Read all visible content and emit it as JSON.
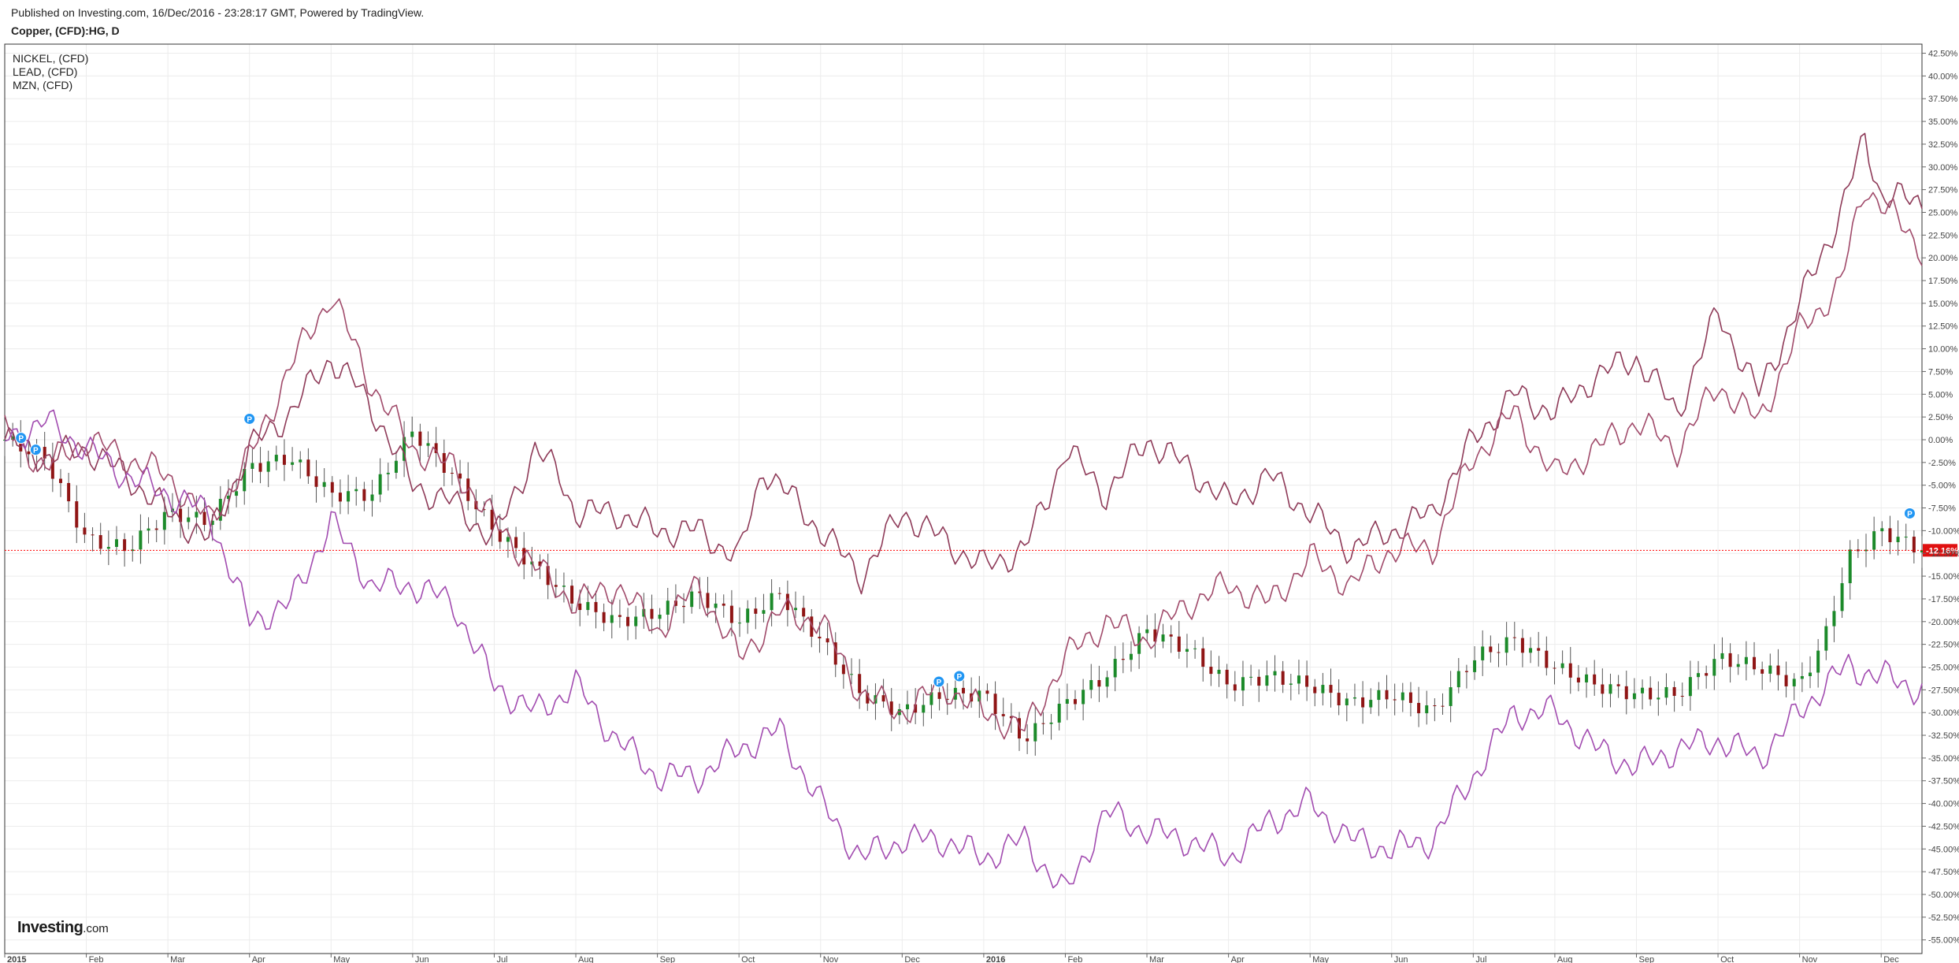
{
  "header": {
    "published": "Published on Investing.com, 16/Dec/2016 - 23:28:17 GMT, Powered by TradingView.",
    "symbol": "Copper, (CFD):HG, D"
  },
  "legend": [
    "NICKEL,  (CFD)",
    "LEAD,  (CFD)",
    "MZN,  (CFD)"
  ],
  "logo": {
    "text": "Investing",
    "suffix": ".com"
  },
  "colors": {
    "nickel": "#8e3a58",
    "lead": "#a04a6a",
    "mzn": "#a24cb0",
    "candle_up": "#1c8a2a",
    "candle_down": "#8f1515",
    "grid": "#ececec",
    "current_line": "#ff0000",
    "current_badge": "#e01010",
    "marker": "#2196f3"
  },
  "chart_data": {
    "type": "line",
    "y_unit": "percent change",
    "ylim": [
      -56.5,
      43.5
    ],
    "y_ticks": [
      "42.50%",
      "40.00%",
      "37.50%",
      "35.00%",
      "32.50%",
      "30.00%",
      "27.50%",
      "25.00%",
      "22.50%",
      "20.00%",
      "17.50%",
      "15.00%",
      "12.50%",
      "10.00%",
      "7.50%",
      "5.00%",
      "2.50%",
      "0.00%",
      "-2.50%",
      "-5.00%",
      "-7.50%",
      "-10.00%",
      "-12.50%",
      "-15.00%",
      "-17.50%",
      "-20.00%",
      "-22.50%",
      "-25.00%",
      "-27.50%",
      "-30.00%",
      "-32.50%",
      "-35.00%",
      "-37.50%",
      "-40.00%",
      "-42.50%",
      "-45.00%",
      "-47.50%",
      "-50.00%",
      "-52.50%",
      "-55.00%"
    ],
    "x_ticks": [
      {
        "label": "2015",
        "month": 0,
        "bold": true
      },
      {
        "label": "Feb",
        "month": 1
      },
      {
        "label": "Mar",
        "month": 2
      },
      {
        "label": "Apr",
        "month": 3
      },
      {
        "label": "May",
        "month": 4
      },
      {
        "label": "Jun",
        "month": 5
      },
      {
        "label": "Jul",
        "month": 6
      },
      {
        "label": "Aug",
        "month": 7
      },
      {
        "label": "Sep",
        "month": 8
      },
      {
        "label": "Oct",
        "month": 9
      },
      {
        "label": "Nov",
        "month": 10
      },
      {
        "label": "Dec",
        "month": 11
      },
      {
        "label": "2016",
        "month": 12,
        "bold": true
      },
      {
        "label": "Feb",
        "month": 13
      },
      {
        "label": "Mar",
        "month": 14
      },
      {
        "label": "Apr",
        "month": 15
      },
      {
        "label": "May",
        "month": 16
      },
      {
        "label": "Jun",
        "month": 17
      },
      {
        "label": "Jul",
        "month": 18
      },
      {
        "label": "Aug",
        "month": 19
      },
      {
        "label": "Sep",
        "month": 20
      },
      {
        "label": "Oct",
        "month": 21
      },
      {
        "label": "Nov",
        "month": 22
      },
      {
        "label": "Dec",
        "month": 23
      }
    ],
    "x_range_months": [
      0,
      23.5
    ],
    "current_value": -12.16,
    "current_label": "-12.16%",
    "copper_candles": {
      "label": "Copper, (CFD):HG, D",
      "t": [
        0,
        0.5,
        1,
        1.5,
        2,
        2.5,
        3,
        3.5,
        4,
        4.5,
        5,
        5.5,
        6,
        6.5,
        7,
        7.5,
        8,
        8.5,
        9,
        9.5,
        10,
        10.5,
        11,
        11.5,
        12,
        12.5,
        13,
        13.5,
        14,
        14.5,
        15,
        15.5,
        16,
        16.5,
        17,
        17.5,
        18,
        18.5,
        19,
        19.5,
        20,
        20.5,
        21,
        21.5,
        22,
        22.3,
        22.6,
        23,
        23.5
      ],
      "close": [
        0,
        -2,
        -11,
        -12,
        -8,
        -9,
        -3,
        -2,
        -6,
        -6,
        1,
        -4,
        -10,
        -14,
        -18,
        -20,
        -19,
        -17,
        -20,
        -17,
        -22,
        -28,
        -30,
        -28,
        -28,
        -33,
        -29,
        -26,
        -21,
        -23,
        -27,
        -26,
        -27,
        -29,
        -28,
        -30,
        -24,
        -22,
        -25,
        -27,
        -28,
        -28,
        -24,
        -25,
        -27,
        -22,
        -13,
        -10,
        -12.16
      ]
    },
    "series": [
      {
        "name": "NICKEL,  (CFD)",
        "t": [
          0,
          0.5,
          1,
          1.5,
          2,
          2.5,
          3,
          3.5,
          4,
          4.3,
          4.6,
          5,
          5.5,
          6,
          6.5,
          6.8,
          7,
          7.5,
          8,
          8.5,
          9,
          9.3,
          9.6,
          10,
          10.5,
          11,
          11.5,
          12,
          12.5,
          12.8,
          13,
          13.5,
          14,
          14.5,
          15,
          15.5,
          16,
          16.5,
          17,
          17.5,
          18,
          18.5,
          19,
          19.5,
          20,
          20.5,
          21,
          21.5,
          22,
          22.5,
          22.8,
          23,
          23.5
        ],
        "values": [
          0,
          -2,
          -1,
          -4,
          -8,
          -11,
          -1,
          3,
          9,
          6,
          2,
          -5,
          -7,
          -11,
          -1,
          -4,
          -8,
          -8,
          -10,
          -10,
          -13,
          -3,
          -6,
          -10,
          -15,
          -8,
          -11,
          -14,
          -12,
          -6,
          -1,
          -6,
          0,
          -3,
          -7,
          -4,
          -8,
          -12,
          -10,
          -8,
          0,
          5,
          3,
          7,
          9,
          3,
          14,
          5,
          15,
          25,
          33,
          27,
          26
        ]
      },
      {
        "name": "LEAD,  (CFD)",
        "t": [
          0,
          0.5,
          1,
          1.5,
          2,
          2.5,
          3,
          3.5,
          4,
          4.5,
          5,
          5.5,
          6,
          6.5,
          7,
          7.5,
          8,
          8.5,
          9,
          9.5,
          10,
          10.5,
          11,
          11.5,
          12,
          12.5,
          13,
          13.5,
          14,
          14.5,
          15,
          15.5,
          16,
          16.5,
          17,
          17.5,
          18,
          18.5,
          19,
          19.5,
          20,
          20.5,
          21,
          21.5,
          22,
          22.5,
          22.8,
          23,
          23.5
        ],
        "values": [
          1,
          -3,
          0,
          -2,
          -4,
          -9,
          -2,
          8,
          16,
          6,
          -1,
          -3,
          -9,
          -14,
          -18,
          -16,
          -21,
          -16,
          -24,
          -19,
          -20,
          -28,
          -30,
          -27,
          -30,
          -32,
          -24,
          -20,
          -22,
          -18,
          -16,
          -18,
          -13,
          -16,
          -12,
          -12,
          -2,
          3,
          -4,
          -1,
          2,
          -1,
          6,
          2,
          12,
          17,
          28,
          26,
          21
        ]
      },
      {
        "name": "MZN,  (CFD)",
        "t": [
          0,
          0.5,
          1,
          1.5,
          2,
          2.5,
          3,
          3.5,
          4,
          4.5,
          5,
          5.5,
          6,
          6.5,
          7,
          7.5,
          8,
          8.5,
          9,
          9.5,
          10,
          10.5,
          11,
          11.5,
          12,
          12.5,
          13,
          13.5,
          14,
          14.5,
          15,
          15.5,
          16,
          16.5,
          17,
          17.5,
          18,
          18.5,
          19,
          19.5,
          20,
          20.5,
          21,
          21.5,
          22,
          22.3,
          22.6,
          23,
          23.5
        ],
        "values": [
          0,
          2,
          -1,
          -4,
          -6,
          -8,
          -20,
          -18,
          -9,
          -16,
          -16,
          -18,
          -27,
          -30,
          -27,
          -33,
          -37,
          -37,
          -34,
          -32,
          -40,
          -46,
          -44,
          -44,
          -46,
          -44,
          -50,
          -41,
          -43,
          -44,
          -46,
          -42,
          -40,
          -44,
          -45,
          -44,
          -37,
          -30,
          -30,
          -34,
          -36,
          -34,
          -33,
          -35,
          -30,
          -27,
          -25,
          -26,
          -27.5
        ]
      }
    ],
    "markers": [
      {
        "label": "P",
        "t": 0.2,
        "value": 0.2
      },
      {
        "label": "P",
        "t": 0.38,
        "value": -1.1
      },
      {
        "label": "P",
        "t": 3.0,
        "value": 2.3
      },
      {
        "label": "P",
        "t": 11.45,
        "value": -26.6
      },
      {
        "label": "P",
        "t": 11.7,
        "value": -26.0
      },
      {
        "label": "P",
        "t": 23.35,
        "value": -8.1
      }
    ]
  }
}
